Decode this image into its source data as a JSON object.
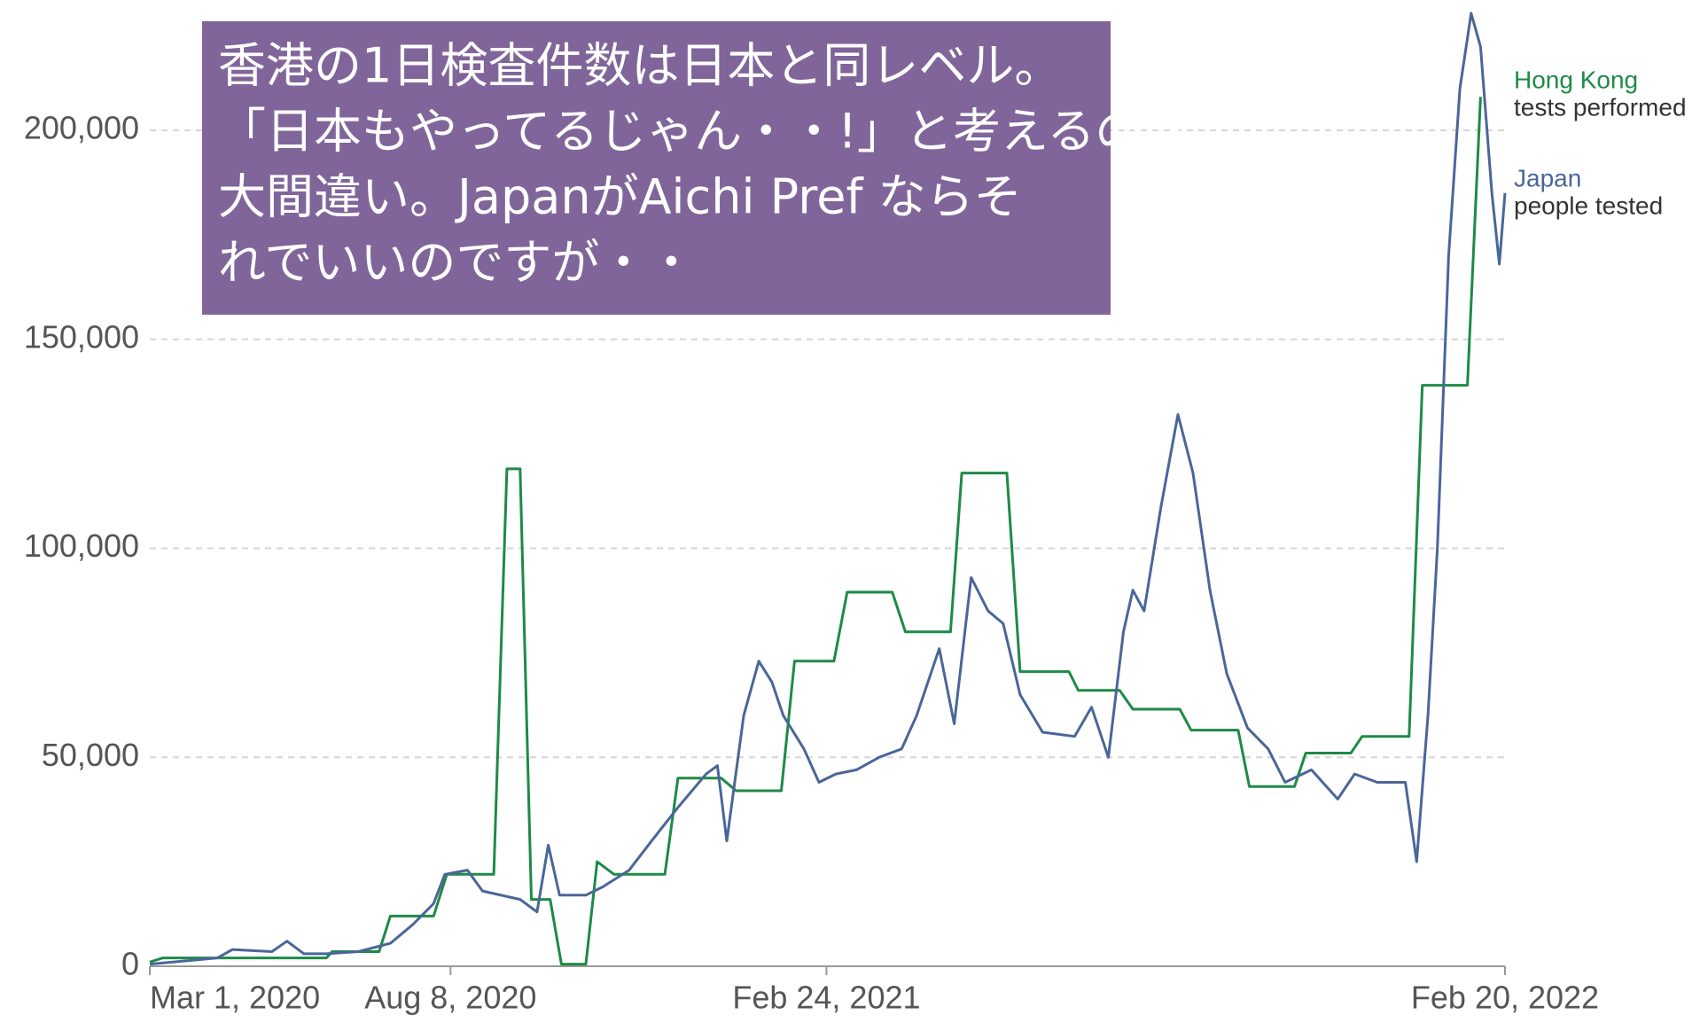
{
  "chart_data": {
    "type": "line",
    "annotation": [
      "香港の1日検査件数は日本と同レベル。",
      "「日本もやってるじゃん・・!」と考えるのは",
      "大間違い。JapanがAichi Pref ならそ",
      "れでいいのですが・・"
    ],
    "xlim": [
      "2020-03-01",
      "2022-02-20"
    ],
    "xticks": [
      {
        "value": "2020-03-01",
        "label": "Mar 1, 2020"
      },
      {
        "value": "2020-08-08",
        "label": "Aug 8, 2020"
      },
      {
        "value": "2021-02-24",
        "label": "Feb 24, 2021"
      },
      {
        "value": "2022-02-20",
        "label": "Feb 20, 2022"
      }
    ],
    "ylim": [
      0,
      230000
    ],
    "yticks": [
      0,
      {
        "value": 50000,
        "label": "50,000"
      },
      {
        "value": 100000,
        "label": "100,000"
      },
      {
        "value": 150000,
        "label": "150,000"
      },
      {
        "value": 200000,
        "label": "200,000"
      }
    ],
    "grid": true,
    "series": [
      {
        "name": "Hong Kong",
        "measure": "tests performed",
        "color": "#1e8a46",
        "x": [
          "2020-03-01",
          "2020-03-08",
          "2020-06-03",
          "2020-06-06",
          "2020-07-01",
          "2020-07-07",
          "2020-07-30",
          "2020-08-06",
          "2020-08-31",
          "2020-09-07",
          "2020-09-14",
          "2020-09-20",
          "2020-09-30",
          "2020-10-06",
          "2020-10-19",
          "2020-10-25",
          "2020-11-03",
          "2020-11-30",
          "2020-12-07",
          "2020-12-30",
          "2021-01-07",
          "2021-01-31",
          "2021-02-07",
          "2021-02-28",
          "2021-03-07",
          "2021-03-31",
          "2021-04-07",
          "2021-05-01",
          "2021-05-07",
          "2021-05-31",
          "2021-06-07",
          "2021-07-03",
          "2021-07-08",
          "2021-07-30",
          "2021-08-06",
          "2021-08-31",
          "2021-09-06",
          "2021-10-01",
          "2021-10-07",
          "2021-10-31",
          "2021-11-06",
          "2021-11-30",
          "2021-12-06",
          "2021-12-31",
          "2022-01-07",
          "2022-01-31",
          "2022-02-07"
        ],
        "values": [
          1000,
          2000,
          2000,
          3500,
          3500,
          12000,
          12000,
          22000,
          22000,
          119000,
          119000,
          16000,
          16000,
          500,
          500,
          25000,
          22000,
          22000,
          45000,
          45000,
          42000,
          42000,
          73000,
          73000,
          89500,
          89500,
          80000,
          80000,
          118000,
          118000,
          70500,
          70500,
          66000,
          66000,
          61500,
          61500,
          56500,
          56500,
          43000,
          43000,
          51000,
          51000,
          55000,
          55000,
          139000,
          139000,
          208000
        ]
      },
      {
        "name": "Japan",
        "measure": "people tested",
        "color": "#4a6699",
        "x": [
          "2020-03-01",
          "2020-04-06",
          "2020-04-14",
          "2020-05-05",
          "2020-05-13",
          "2020-05-22",
          "2020-06-03",
          "2020-06-20",
          "2020-07-07",
          "2020-07-19",
          "2020-07-30",
          "2020-08-05",
          "2020-08-17",
          "2020-08-25",
          "2020-09-14",
          "2020-09-23",
          "2020-09-29",
          "2020-10-05",
          "2020-10-19",
          "2020-10-28",
          "2020-11-11",
          "2020-11-23",
          "2020-12-07",
          "2020-12-22",
          "2020-12-28",
          "2021-01-02",
          "2021-01-11",
          "2021-01-19",
          "2021-01-26",
          "2021-02-01",
          "2021-02-12",
          "2021-02-20",
          "2021-03-01",
          "2021-03-12",
          "2021-03-24",
          "2021-04-05",
          "2021-04-13",
          "2021-04-25",
          "2021-05-03",
          "2021-05-12",
          "2021-05-21",
          "2021-05-29",
          "2021-06-07",
          "2021-06-19",
          "2021-07-06",
          "2021-07-15",
          "2021-07-24",
          "2021-08-01",
          "2021-08-06",
          "2021-08-12",
          "2021-08-21",
          "2021-08-30",
          "2021-09-07",
          "2021-09-16",
          "2021-09-25",
          "2021-10-06",
          "2021-10-17",
          "2021-10-26",
          "2021-11-09",
          "2021-11-23",
          "2021-12-02",
          "2021-12-14",
          "2021-12-29",
          "2022-01-04",
          "2022-01-10",
          "2022-01-15",
          "2022-01-21",
          "2022-01-27",
          "2022-02-02",
          "2022-02-07",
          "2022-02-13",
          "2022-02-17",
          "2022-02-20"
        ],
        "values": [
          500,
          2000,
          4000,
          3500,
          6000,
          3000,
          3000,
          3500,
          5500,
          10000,
          15000,
          22000,
          23000,
          18000,
          16000,
          13000,
          29000,
          17000,
          17000,
          19000,
          23000,
          30000,
          38000,
          46000,
          48000,
          30000,
          60000,
          73000,
          68000,
          60000,
          52000,
          44000,
          46000,
          47000,
          50000,
          52000,
          60000,
          76000,
          58000,
          93000,
          85000,
          82000,
          65000,
          56000,
          55000,
          62000,
          50000,
          80000,
          90000,
          85000,
          110000,
          132000,
          118000,
          90000,
          70000,
          57000,
          52000,
          44000,
          47000,
          40000,
          46000,
          44000,
          44000,
          25000,
          60000,
          100000,
          170000,
          210000,
          228000,
          220000,
          185000,
          168000,
          185000
        ]
      }
    ]
  }
}
